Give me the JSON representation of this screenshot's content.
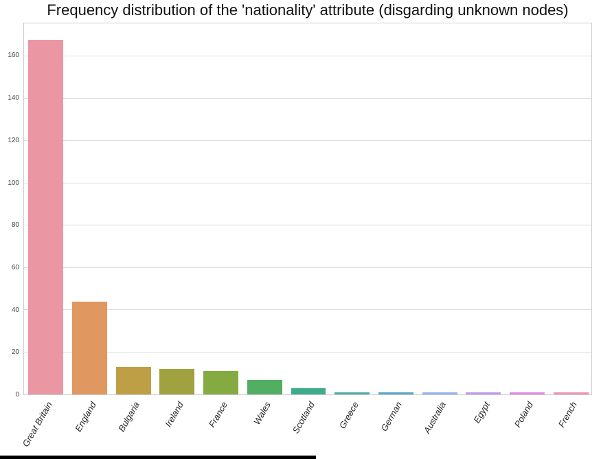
{
  "title": "Frequency distribution of the 'nationality' attribute (disgarding unknown nodes)",
  "chart_data": {
    "type": "bar",
    "title": "Frequency distribution of the 'nationality' attribute (disgarding unknown nodes)",
    "categories": [
      "Great Britain",
      "England",
      "Bulgaria",
      "Ireland",
      "France",
      "Wales",
      "Scotland",
      "Greece",
      "German",
      "Australia",
      "Egypt",
      "Poland",
      "French"
    ],
    "values": [
      168,
      44,
      13,
      12,
      11,
      7,
      3,
      1,
      1,
      1,
      1,
      1,
      1
    ],
    "bar_colors": [
      "#ea96a3",
      "#e09760",
      "#bf9f45",
      "#9fa23e",
      "#85aa42",
      "#52ae63",
      "#3eab8b",
      "#4caba1",
      "#54a8c5",
      "#97b4ea",
      "#c29be8",
      "#e28ae1",
      "#ee93b7"
    ],
    "xlabel": "",
    "ylabel": "",
    "yticks": [
      0,
      20,
      40,
      60,
      80,
      100,
      120,
      140,
      160
    ],
    "ylim": [
      0,
      175.7
    ],
    "grid": "horizontal",
    "legend": "none",
    "style": {
      "background": "#ffffff",
      "grid_color": "#dddddd",
      "frame_color": "#cccccc",
      "tick_color": "#444444",
      "title_color": "#111111",
      "label_color": "#262626"
    }
  },
  "bottom_strip": {
    "color": "#000000"
  }
}
